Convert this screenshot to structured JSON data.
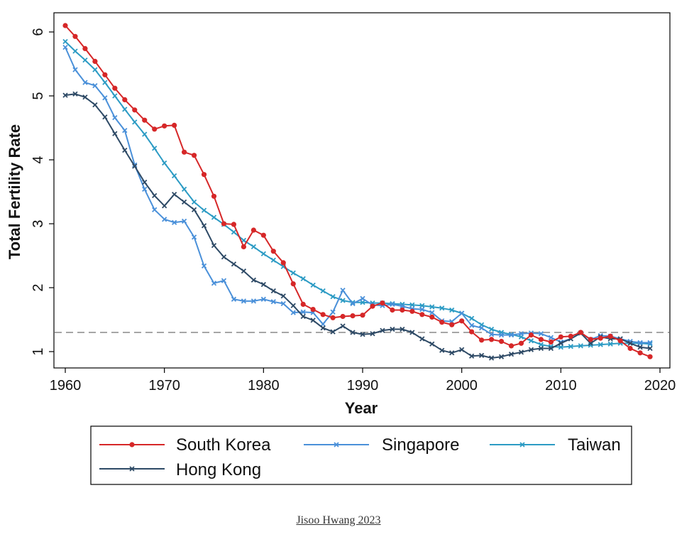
{
  "chart_data": {
    "type": "line",
    "xlabel": "Year",
    "ylabel": "Total Fertility Rate",
    "xlim": [
      1960,
      2020
    ],
    "ylim": [
      0.75,
      6.3
    ],
    "x_ticks": [
      1960,
      1970,
      1980,
      1990,
      2000,
      2010,
      2020
    ],
    "y_ticks": [
      1,
      2,
      3,
      4,
      5,
      6
    ],
    "reference_line": {
      "y": 1.3,
      "style": "dashed",
      "color": "#888888"
    },
    "grid": false,
    "legend_position": "bottom",
    "series": [
      {
        "name": "South Korea",
        "color": "#d62728",
        "marker": "circle",
        "x": [
          1960,
          1961,
          1962,
          1963,
          1964,
          1965,
          1966,
          1967,
          1968,
          1969,
          1970,
          1971,
          1972,
          1973,
          1974,
          1975,
          1976,
          1977,
          1978,
          1979,
          1980,
          1981,
          1982,
          1983,
          1984,
          1985,
          1986,
          1987,
          1988,
          1989,
          1990,
          1991,
          1992,
          1993,
          1994,
          1995,
          1996,
          1997,
          1998,
          1999,
          2000,
          2001,
          2002,
          2003,
          2004,
          2005,
          2006,
          2007,
          2008,
          2009,
          2010,
          2011,
          2012,
          2013,
          2014,
          2015,
          2016,
          2017,
          2018,
          2019
        ],
        "y": [
          6.1,
          5.93,
          5.74,
          5.54,
          5.33,
          5.12,
          4.94,
          4.78,
          4.62,
          4.48,
          4.53,
          4.54,
          4.12,
          4.07,
          3.77,
          3.43,
          3.0,
          2.99,
          2.64,
          2.9,
          2.82,
          2.57,
          2.39,
          2.06,
          1.74,
          1.66,
          1.58,
          1.53,
          1.55,
          1.56,
          1.57,
          1.71,
          1.76,
          1.65,
          1.65,
          1.63,
          1.58,
          1.54,
          1.46,
          1.42,
          1.48,
          1.31,
          1.18,
          1.19,
          1.16,
          1.09,
          1.13,
          1.26,
          1.19,
          1.15,
          1.23,
          1.24,
          1.3,
          1.19,
          1.21,
          1.24,
          1.17,
          1.05,
          0.98,
          0.92
        ]
      },
      {
        "name": "Singapore",
        "color": "#4a90d9",
        "marker": "x",
        "x": [
          1960,
          1961,
          1962,
          1963,
          1964,
          1965,
          1966,
          1967,
          1968,
          1969,
          1970,
          1971,
          1972,
          1973,
          1974,
          1975,
          1976,
          1977,
          1978,
          1979,
          1980,
          1981,
          1982,
          1983,
          1984,
          1985,
          1986,
          1987,
          1988,
          1989,
          1990,
          1991,
          1992,
          1993,
          1994,
          1995,
          1996,
          1997,
          1998,
          1999,
          2000,
          2001,
          2002,
          2003,
          2004,
          2005,
          2006,
          2007,
          2008,
          2009,
          2010,
          2011,
          2012,
          2013,
          2014,
          2015,
          2016,
          2017,
          2018,
          2019
        ],
        "y": [
          5.76,
          5.41,
          5.21,
          5.16,
          4.97,
          4.66,
          4.46,
          3.92,
          3.54,
          3.22,
          3.07,
          3.02,
          3.04,
          2.79,
          2.34,
          2.07,
          2.11,
          1.82,
          1.79,
          1.79,
          1.82,
          1.78,
          1.75,
          1.61,
          1.62,
          1.61,
          1.43,
          1.62,
          1.96,
          1.75,
          1.83,
          1.73,
          1.72,
          1.74,
          1.71,
          1.67,
          1.66,
          1.61,
          1.48,
          1.47,
          1.6,
          1.41,
          1.37,
          1.27,
          1.26,
          1.26,
          1.28,
          1.29,
          1.28,
          1.22,
          1.15,
          1.2,
          1.29,
          1.19,
          1.25,
          1.24,
          1.2,
          1.16,
          1.14,
          1.14
        ]
      },
      {
        "name": "Taiwan",
        "color": "#2c9bc4",
        "marker": "x",
        "x": [
          1960,
          1961,
          1962,
          1963,
          1964,
          1965,
          1966,
          1967,
          1968,
          1969,
          1970,
          1971,
          1972,
          1973,
          1974,
          1975,
          1976,
          1977,
          1978,
          1979,
          1980,
          1981,
          1982,
          1983,
          1984,
          1985,
          1986,
          1987,
          1988,
          1989,
          1990,
          1991,
          1992,
          1993,
          1994,
          1995,
          1996,
          1997,
          1998,
          1999,
          2000,
          2001,
          2002,
          2003,
          2004,
          2005,
          2006,
          2007,
          2008,
          2009,
          2010,
          2011,
          2012,
          2013,
          2014,
          2015,
          2016,
          2017,
          2018,
          2019
        ],
        "y": [
          5.85,
          5.7,
          5.56,
          5.41,
          5.21,
          5.0,
          4.79,
          4.59,
          4.4,
          4.18,
          3.95,
          3.75,
          3.54,
          3.34,
          3.21,
          3.1,
          2.99,
          2.87,
          2.74,
          2.64,
          2.53,
          2.43,
          2.33,
          2.23,
          2.14,
          2.04,
          1.95,
          1.86,
          1.8,
          1.77,
          1.77,
          1.76,
          1.76,
          1.75,
          1.74,
          1.73,
          1.72,
          1.7,
          1.68,
          1.65,
          1.6,
          1.52,
          1.42,
          1.35,
          1.3,
          1.27,
          1.23,
          1.17,
          1.11,
          1.08,
          1.07,
          1.08,
          1.09,
          1.1,
          1.11,
          1.12,
          1.13,
          1.13,
          1.13,
          1.12
        ]
      },
      {
        "name": "Hong Kong",
        "color": "#2e4a66",
        "marker": "x",
        "x": [
          1960,
          1961,
          1962,
          1963,
          1964,
          1965,
          1966,
          1967,
          1968,
          1969,
          1970,
          1971,
          1972,
          1973,
          1974,
          1975,
          1976,
          1977,
          1978,
          1979,
          1980,
          1981,
          1982,
          1983,
          1984,
          1985,
          1986,
          1987,
          1988,
          1989,
          1990,
          1991,
          1992,
          1993,
          1994,
          1995,
          1996,
          1997,
          1998,
          1999,
          2000,
          2001,
          2002,
          2003,
          2004,
          2005,
          2006,
          2007,
          2008,
          2009,
          2010,
          2011,
          2012,
          2013,
          2014,
          2015,
          2016,
          2017,
          2018,
          2019
        ],
        "y": [
          5.01,
          5.03,
          4.98,
          4.86,
          4.67,
          4.41,
          4.15,
          3.9,
          3.65,
          3.44,
          3.28,
          3.46,
          3.34,
          3.22,
          2.97,
          2.66,
          2.48,
          2.37,
          2.26,
          2.12,
          2.05,
          1.95,
          1.87,
          1.72,
          1.55,
          1.49,
          1.37,
          1.31,
          1.4,
          1.3,
          1.27,
          1.28,
          1.33,
          1.35,
          1.35,
          1.3,
          1.2,
          1.12,
          1.02,
          0.98,
          1.03,
          0.93,
          0.94,
          0.9,
          0.92,
          0.96,
          0.99,
          1.03,
          1.05,
          1.05,
          1.13,
          1.2,
          1.29,
          1.13,
          1.23,
          1.2,
          1.2,
          1.13,
          1.07,
          1.05
        ]
      }
    ]
  },
  "legend": {
    "items": [
      "South Korea",
      "Singapore",
      "Taiwan",
      "Hong Kong"
    ]
  },
  "credit": {
    "text": "Jisoo Hwang 2023"
  }
}
